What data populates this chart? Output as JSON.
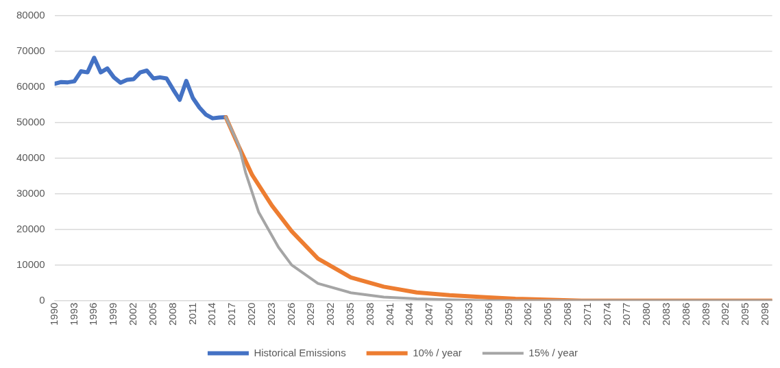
{
  "chart_data": {
    "type": "line",
    "xlim": [
      1990,
      2099
    ],
    "xticks": [
      1990,
      1993,
      1996,
      1999,
      2002,
      2005,
      2008,
      2011,
      2014,
      2017,
      2020,
      2023,
      2026,
      2029,
      2032,
      2035,
      2038,
      2041,
      2044,
      2047,
      2050,
      2053,
      2056,
      2059,
      2062,
      2065,
      2068,
      2071,
      2074,
      2077,
      2080,
      2083,
      2086,
      2089,
      2092,
      2095,
      2098
    ],
    "ylim": [
      0,
      80000
    ],
    "yticks": [
      0,
      10000,
      20000,
      30000,
      40000,
      50000,
      60000,
      70000,
      80000
    ],
    "grid": "y",
    "legend": "bottom",
    "marker": "none",
    "line_style": "solid",
    "series": [
      {
        "name": "Historical Emissions",
        "color": "#4472c4",
        "x": [
          1990,
          1991,
          1992,
          1993,
          1994,
          1995,
          1996,
          1997,
          1998,
          1999,
          2000,
          2001,
          2002,
          2003,
          2004,
          2005,
          2006,
          2007,
          2008,
          2009,
          2010,
          2011,
          2012,
          2013,
          2014,
          2015,
          2016
        ],
        "values": [
          60900,
          61400,
          61300,
          61600,
          64400,
          64100,
          68200,
          64100,
          65200,
          62700,
          61200,
          62000,
          62200,
          64100,
          64600,
          62400,
          62700,
          62400,
          59300,
          56400,
          61700,
          56900,
          54200,
          52200,
          51200,
          51400,
          51500
        ]
      },
      {
        "name": "10% / year",
        "color": "#ed7d31",
        "x": [
          2016,
          2018,
          2020,
          2023,
          2026,
          2030,
          2035,
          2040,
          2045,
          2050,
          2055,
          2060,
          2070,
          2099
        ],
        "values": [
          51500,
          43200,
          35300,
          26700,
          19500,
          11800,
          6500,
          3900,
          2300,
          1500,
          1000,
          500,
          0,
          0
        ]
      },
      {
        "name": "15% / year",
        "color": "#a5a5a5",
        "x": [
          2016,
          2018,
          2019,
          2021,
          2024,
          2026,
          2030,
          2035,
          2040,
          2045,
          2055,
          2099
        ],
        "values": [
          51500,
          43500,
          36000,
          24800,
          15000,
          10000,
          4800,
          2200,
          1000,
          500,
          0,
          0
        ]
      }
    ]
  }
}
